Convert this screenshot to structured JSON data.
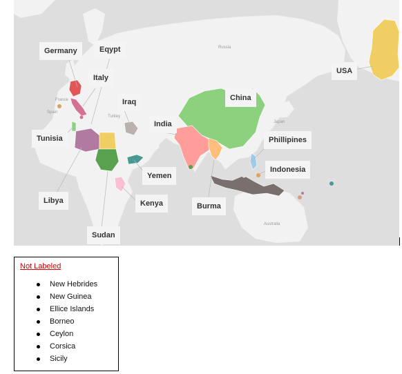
{
  "map": {
    "labels": {
      "germany": "Germany",
      "egypt": "Eqypt",
      "italy": "Italy",
      "iraq": "Iraq",
      "india": "India",
      "china": "China",
      "usa": "USA",
      "tunisia": "Tunisia",
      "philippines": "Phillipines",
      "indonesia": "Indonesia",
      "yemen": "Yemen",
      "kenya": "Kenya",
      "libya": "Libya",
      "burma": "Burma",
      "sudan": "Sudan"
    },
    "faint_labels": {
      "russia": "Russia",
      "japan": "Japan",
      "australia": "Australia",
      "france": "France",
      "spain": "Spain",
      "turkey": "Turkey"
    },
    "colors": {
      "ocean": "#dedede",
      "land": "#f2f2f2",
      "germany": "#e15759",
      "italy": "#d37295",
      "egypt": "#f1ce63",
      "libya": "#b07aa1",
      "tunisia": "#8cd17d",
      "sudan": "#59a14f",
      "yemen": "#499894",
      "kenya": "#fabfd2",
      "iraq": "#bab0ac",
      "india": "#ff9d9a",
      "burma": "#ffbe7d",
      "china": "#8cd17d",
      "philippines": "#a0cbe8",
      "indonesia": "#79706e",
      "usa": "#f1ce63"
    }
  },
  "legend": {
    "title": "Not Labeled",
    "items": [
      "New Hebrides",
      "New Guinea",
      "Ellice Islands",
      "Borneo",
      "Ceylon",
      "Corsica",
      "Sicily"
    ]
  }
}
